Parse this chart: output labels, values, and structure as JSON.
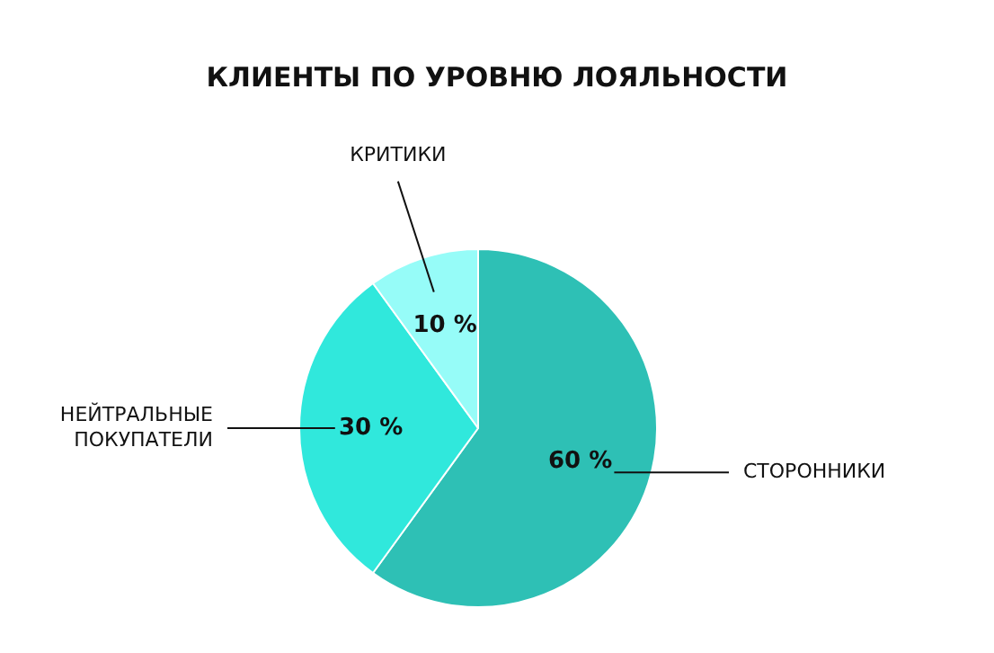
{
  "chart_data": {
    "type": "pie",
    "title": "КЛИЕНТЫ ПО УРОВНЮ ЛОЯЛЬНОСТИ",
    "categories": [
      "СТОРОННИКИ",
      "НЕЙТРАЛЬНЫЕ ПОКУПАТЕЛИ",
      "КРИТИКИ"
    ],
    "values": [
      60,
      30,
      10
    ],
    "colors": [
      "#2ec0b5",
      "#30e8dc",
      "#96fcf8"
    ],
    "value_labels": [
      "60 %",
      "30 %",
      "10 %"
    ],
    "legend": false
  }
}
